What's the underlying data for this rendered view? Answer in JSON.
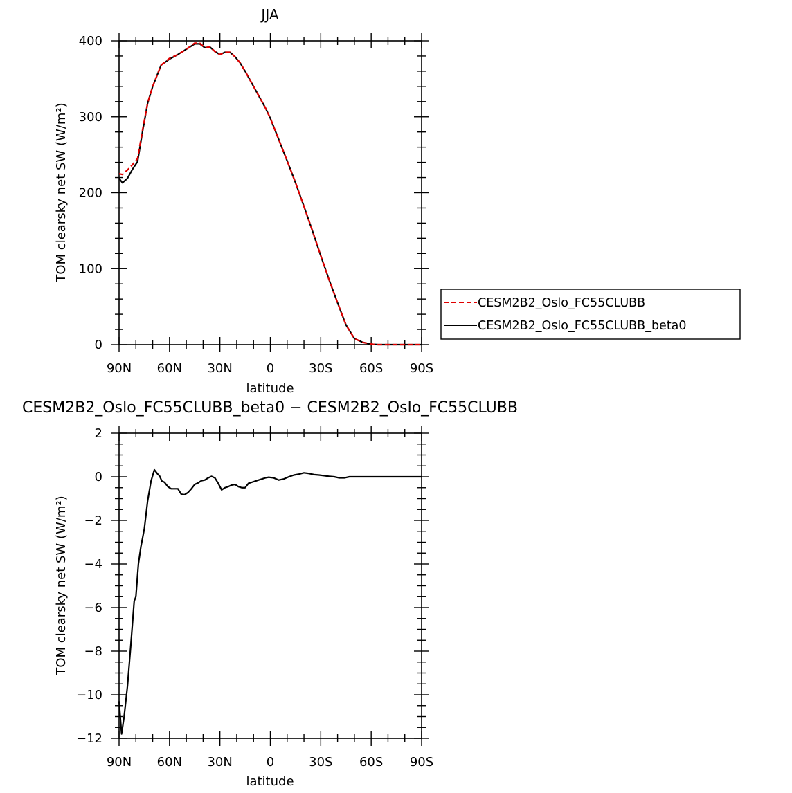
{
  "chart_data": [
    {
      "type": "line",
      "title": "JJA",
      "xlabel": "latitude",
      "ylabel": "TOM clearsky net SW (W/m²)",
      "xlim": [
        90,
        -90
      ],
      "ylim": [
        0,
        400
      ],
      "xticks": [
        90,
        60,
        30,
        0,
        -30,
        -60,
        -90
      ],
      "xtick_labels": [
        "90N",
        "60N",
        "30N",
        "0",
        "30S",
        "60S",
        "90S"
      ],
      "yticks": [
        0,
        100,
        200,
        300,
        400
      ],
      "ytick_labels": [
        "0",
        "100",
        "200",
        "300",
        "400"
      ],
      "legend_position": "right",
      "series": [
        {
          "name": "CESM2B2_Oslo_FC55CLUBB",
          "color": "#e00000",
          "dash": "dashed",
          "x": [
            90,
            88,
            85,
            82,
            79,
            76,
            73,
            70,
            65,
            60,
            55,
            50,
            45,
            42,
            39,
            36,
            33,
            30,
            27,
            24,
            21,
            18,
            15,
            12,
            9,
            6,
            3,
            0,
            -5,
            -10,
            -15,
            -20,
            -25,
            -30,
            -35,
            -40,
            -45,
            -50,
            -55,
            -58,
            -61,
            -64,
            -67,
            -70,
            -73,
            -76,
            -80,
            -85,
            -90
          ],
          "y": [
            225,
            224,
            230,
            237,
            245,
            283,
            318,
            340,
            368,
            377,
            382,
            389,
            397,
            397,
            391,
            392,
            386,
            382,
            385,
            385,
            379,
            371,
            360,
            348,
            336,
            324,
            312,
            298,
            270,
            242,
            213,
            182,
            150,
            117,
            85,
            55,
            26,
            8,
            3,
            1.5,
            0.5,
            0,
            0,
            0,
            0,
            0,
            0,
            0,
            0
          ]
        },
        {
          "name": "CESM2B2_Oslo_FC55CLUBB_beta0",
          "color": "#000000",
          "dash": "solid",
          "x": [
            90,
            88,
            85,
            82,
            79,
            76,
            73,
            70,
            65,
            60,
            55,
            50,
            45,
            42,
            39,
            36,
            33,
            30,
            27,
            24,
            21,
            18,
            15,
            12,
            9,
            6,
            3,
            0,
            -5,
            -10,
            -15,
            -20,
            -25,
            -30,
            -35,
            -40,
            -45,
            -50,
            -55,
            -58,
            -61,
            -64,
            -67,
            -70,
            -73,
            -76,
            -80,
            -85,
            -90
          ],
          "y": [
            219,
            213,
            219,
            231,
            241,
            281,
            318,
            340,
            368,
            376,
            382,
            389,
            396,
            396,
            391,
            392,
            386,
            382,
            385,
            385,
            379,
            371,
            360,
            348,
            336,
            324,
            312,
            298,
            270,
            242,
            213,
            182,
            150,
            117,
            85,
            55,
            26,
            8,
            3,
            1.5,
            0.5,
            0,
            0,
            0,
            0,
            0,
            0,
            0,
            0
          ]
        }
      ]
    },
    {
      "type": "line",
      "title": "CESM2B2_Oslo_FC55CLUBB_beta0 − CESM2B2_Oslo_FC55CLUBB",
      "xlabel": "latitude",
      "ylabel": "TOM clearsky net SW (W/m²)",
      "xlim": [
        90,
        -90
      ],
      "ylim": [
        -12,
        2
      ],
      "xticks": [
        90,
        60,
        30,
        0,
        -30,
        -60,
        -90
      ],
      "xtick_labels": [
        "90N",
        "60N",
        "30N",
        "0",
        "30S",
        "60S",
        "90S"
      ],
      "yticks": [
        2,
        0,
        -2,
        -4,
        -6,
        -8,
        -10,
        -12
      ],
      "ytick_labels": [
        "2",
        "0",
        "−2",
        "−4",
        "−6",
        "−8",
        "−10",
        "−12"
      ],
      "series": [
        {
          "name": "",
          "color": "#000000",
          "dash": "solid",
          "x": [
            90,
            88.5,
            87,
            85,
            83,
            81,
            80,
            78.5,
            77,
            75,
            73,
            71,
            69,
            67,
            66,
            64.5,
            63,
            61,
            59,
            57,
            55,
            53,
            51,
            49,
            47,
            45,
            43,
            41,
            39,
            37,
            35,
            33,
            31,
            29,
            27,
            25,
            23,
            21,
            19,
            17,
            15,
            13,
            11,
            9,
            7,
            5,
            3,
            1,
            -2,
            -5,
            -8,
            -11,
            -14,
            -17,
            -20,
            -23,
            -26,
            -29,
            -32,
            -35,
            -38,
            -41,
            -44,
            -47,
            -50,
            -53,
            -56,
            -59,
            -62,
            -65,
            -68,
            -71,
            -75,
            -80,
            -85,
            -90
          ],
          "y": [
            -10.3,
            -11.8,
            -11.0,
            -9.6,
            -7.7,
            -5.7,
            -5.5,
            -4.0,
            -3.2,
            -2.4,
            -1.1,
            -0.2,
            0.32,
            0.12,
            0.05,
            -0.2,
            -0.25,
            -0.45,
            -0.55,
            -0.55,
            -0.55,
            -0.8,
            -0.82,
            -0.72,
            -0.55,
            -0.35,
            -0.28,
            -0.18,
            -0.15,
            -0.05,
            0.02,
            -0.05,
            -0.3,
            -0.6,
            -0.5,
            -0.45,
            -0.38,
            -0.35,
            -0.45,
            -0.5,
            -0.5,
            -0.3,
            -0.25,
            -0.2,
            -0.15,
            -0.1,
            -0.05,
            -0.02,
            -0.05,
            -0.15,
            -0.1,
            0.0,
            0.08,
            0.12,
            0.18,
            0.15,
            0.1,
            0.08,
            0.05,
            0.02,
            0.0,
            -0.05,
            -0.05,
            0.0,
            0.0,
            0.0,
            0.0,
            0.0,
            0.0,
            0.0,
            0.0,
            0.0,
            0.0,
            0.0,
            0.0,
            0.0
          ]
        }
      ]
    }
  ]
}
